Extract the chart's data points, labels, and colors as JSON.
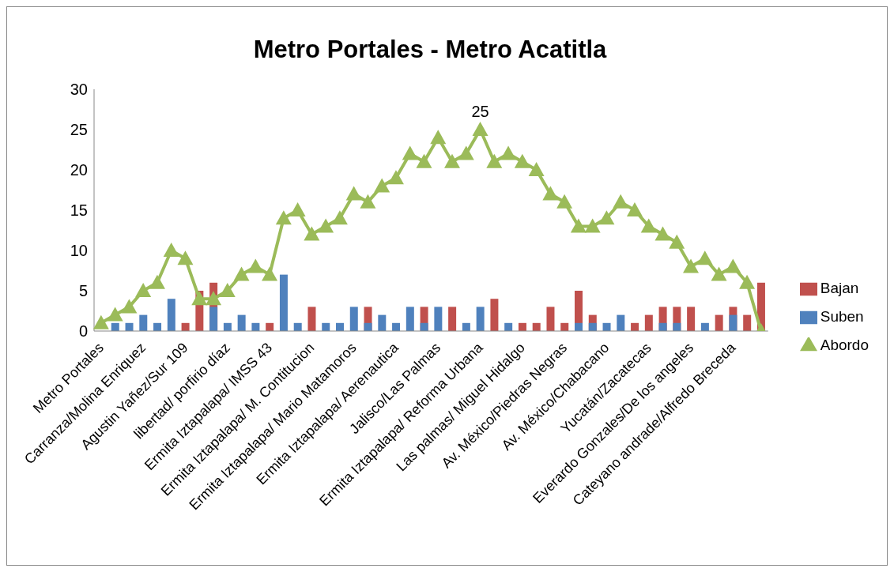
{
  "chart_data": {
    "type": "bar",
    "title": "Metro Portales - Metro Acatitla",
    "categories": [
      "Metro Portales",
      null,
      null,
      "Carranza/Molina Enriquez",
      null,
      null,
      "Agustin Yañez/Sur 109",
      null,
      null,
      "libertad/ porfirio díaz",
      null,
      null,
      "Ermita Iztapalapa/ IMSS 43",
      null,
      null,
      "Ermita Iztapalapa/ M. Contitucion",
      null,
      null,
      "Ermita Iztapalapa/ Mario Matamoros",
      null,
      null,
      "Ermita Iztapalapa/ Aerenautica",
      null,
      null,
      "Jalisco/Las Palmas",
      null,
      null,
      "Ermita Iztapalapa/ Reforma Urbana",
      null,
      null,
      "Las palmas/ Miguel Hidalgo",
      null,
      null,
      "Av. México/Piedras Negras",
      null,
      null,
      "Av. México/Chabacano",
      null,
      null,
      "Yucatán/Zacatecas",
      null,
      null,
      "Everardo Gonzales/De los angeles",
      null,
      null,
      "Cateyano andrade/Alfredo Breceda",
      null,
      null
    ],
    "series": [
      {
        "name": "Bajan",
        "color": "#c0504d",
        "values": [
          0,
          0,
          0,
          0,
          0,
          0,
          1,
          5,
          6,
          0,
          0,
          0,
          1,
          0,
          0,
          3,
          0,
          0,
          0,
          3,
          0,
          0,
          0,
          3,
          0,
          3,
          0,
          0,
          4,
          0,
          1,
          1,
          3,
          1,
          5,
          2,
          0,
          0,
          1,
          2,
          3,
          3,
          3,
          0,
          2,
          3,
          2,
          6
        ]
      },
      {
        "name": "Suben",
        "color": "#4f81bd",
        "values": [
          0,
          1,
          1,
          2,
          1,
          4,
          0,
          0,
          3,
          1,
          2,
          1,
          0,
          7,
          1,
          0,
          1,
          1,
          3,
          1,
          2,
          1,
          3,
          1,
          3,
          0,
          1,
          3,
          0,
          1,
          0,
          0,
          0,
          0,
          1,
          1,
          1,
          2,
          0,
          0,
          1,
          1,
          0,
          1,
          0,
          2,
          0,
          0
        ]
      },
      {
        "name": "Abordo",
        "type": "line",
        "color": "#9bbb59",
        "marker": "triangle",
        "values": [
          1,
          2,
          3,
          5,
          6,
          10,
          9,
          4,
          4,
          5,
          7,
          8,
          7,
          14,
          15,
          12,
          13,
          14,
          17,
          16,
          18,
          19,
          22,
          21,
          24,
          21,
          22,
          25,
          21,
          22,
          21,
          20,
          17,
          16,
          13,
          13,
          14,
          16,
          15,
          13,
          12,
          11,
          8,
          9,
          7,
          8,
          6,
          0
        ],
        "value_labels": [
          null,
          null,
          null,
          null,
          null,
          null,
          null,
          null,
          null,
          null,
          null,
          null,
          null,
          null,
          null,
          null,
          null,
          null,
          null,
          null,
          null,
          null,
          null,
          null,
          null,
          null,
          null,
          "25",
          null,
          null,
          null,
          null,
          null,
          null,
          null,
          null,
          null,
          null,
          null,
          null,
          null,
          null,
          null,
          null,
          null,
          null,
          null,
          null
        ]
      }
    ],
    "ylim": [
      0,
      30
    ],
    "yticks": [
      0,
      5,
      10,
      15,
      20,
      25,
      30
    ],
    "legend": "right"
  }
}
